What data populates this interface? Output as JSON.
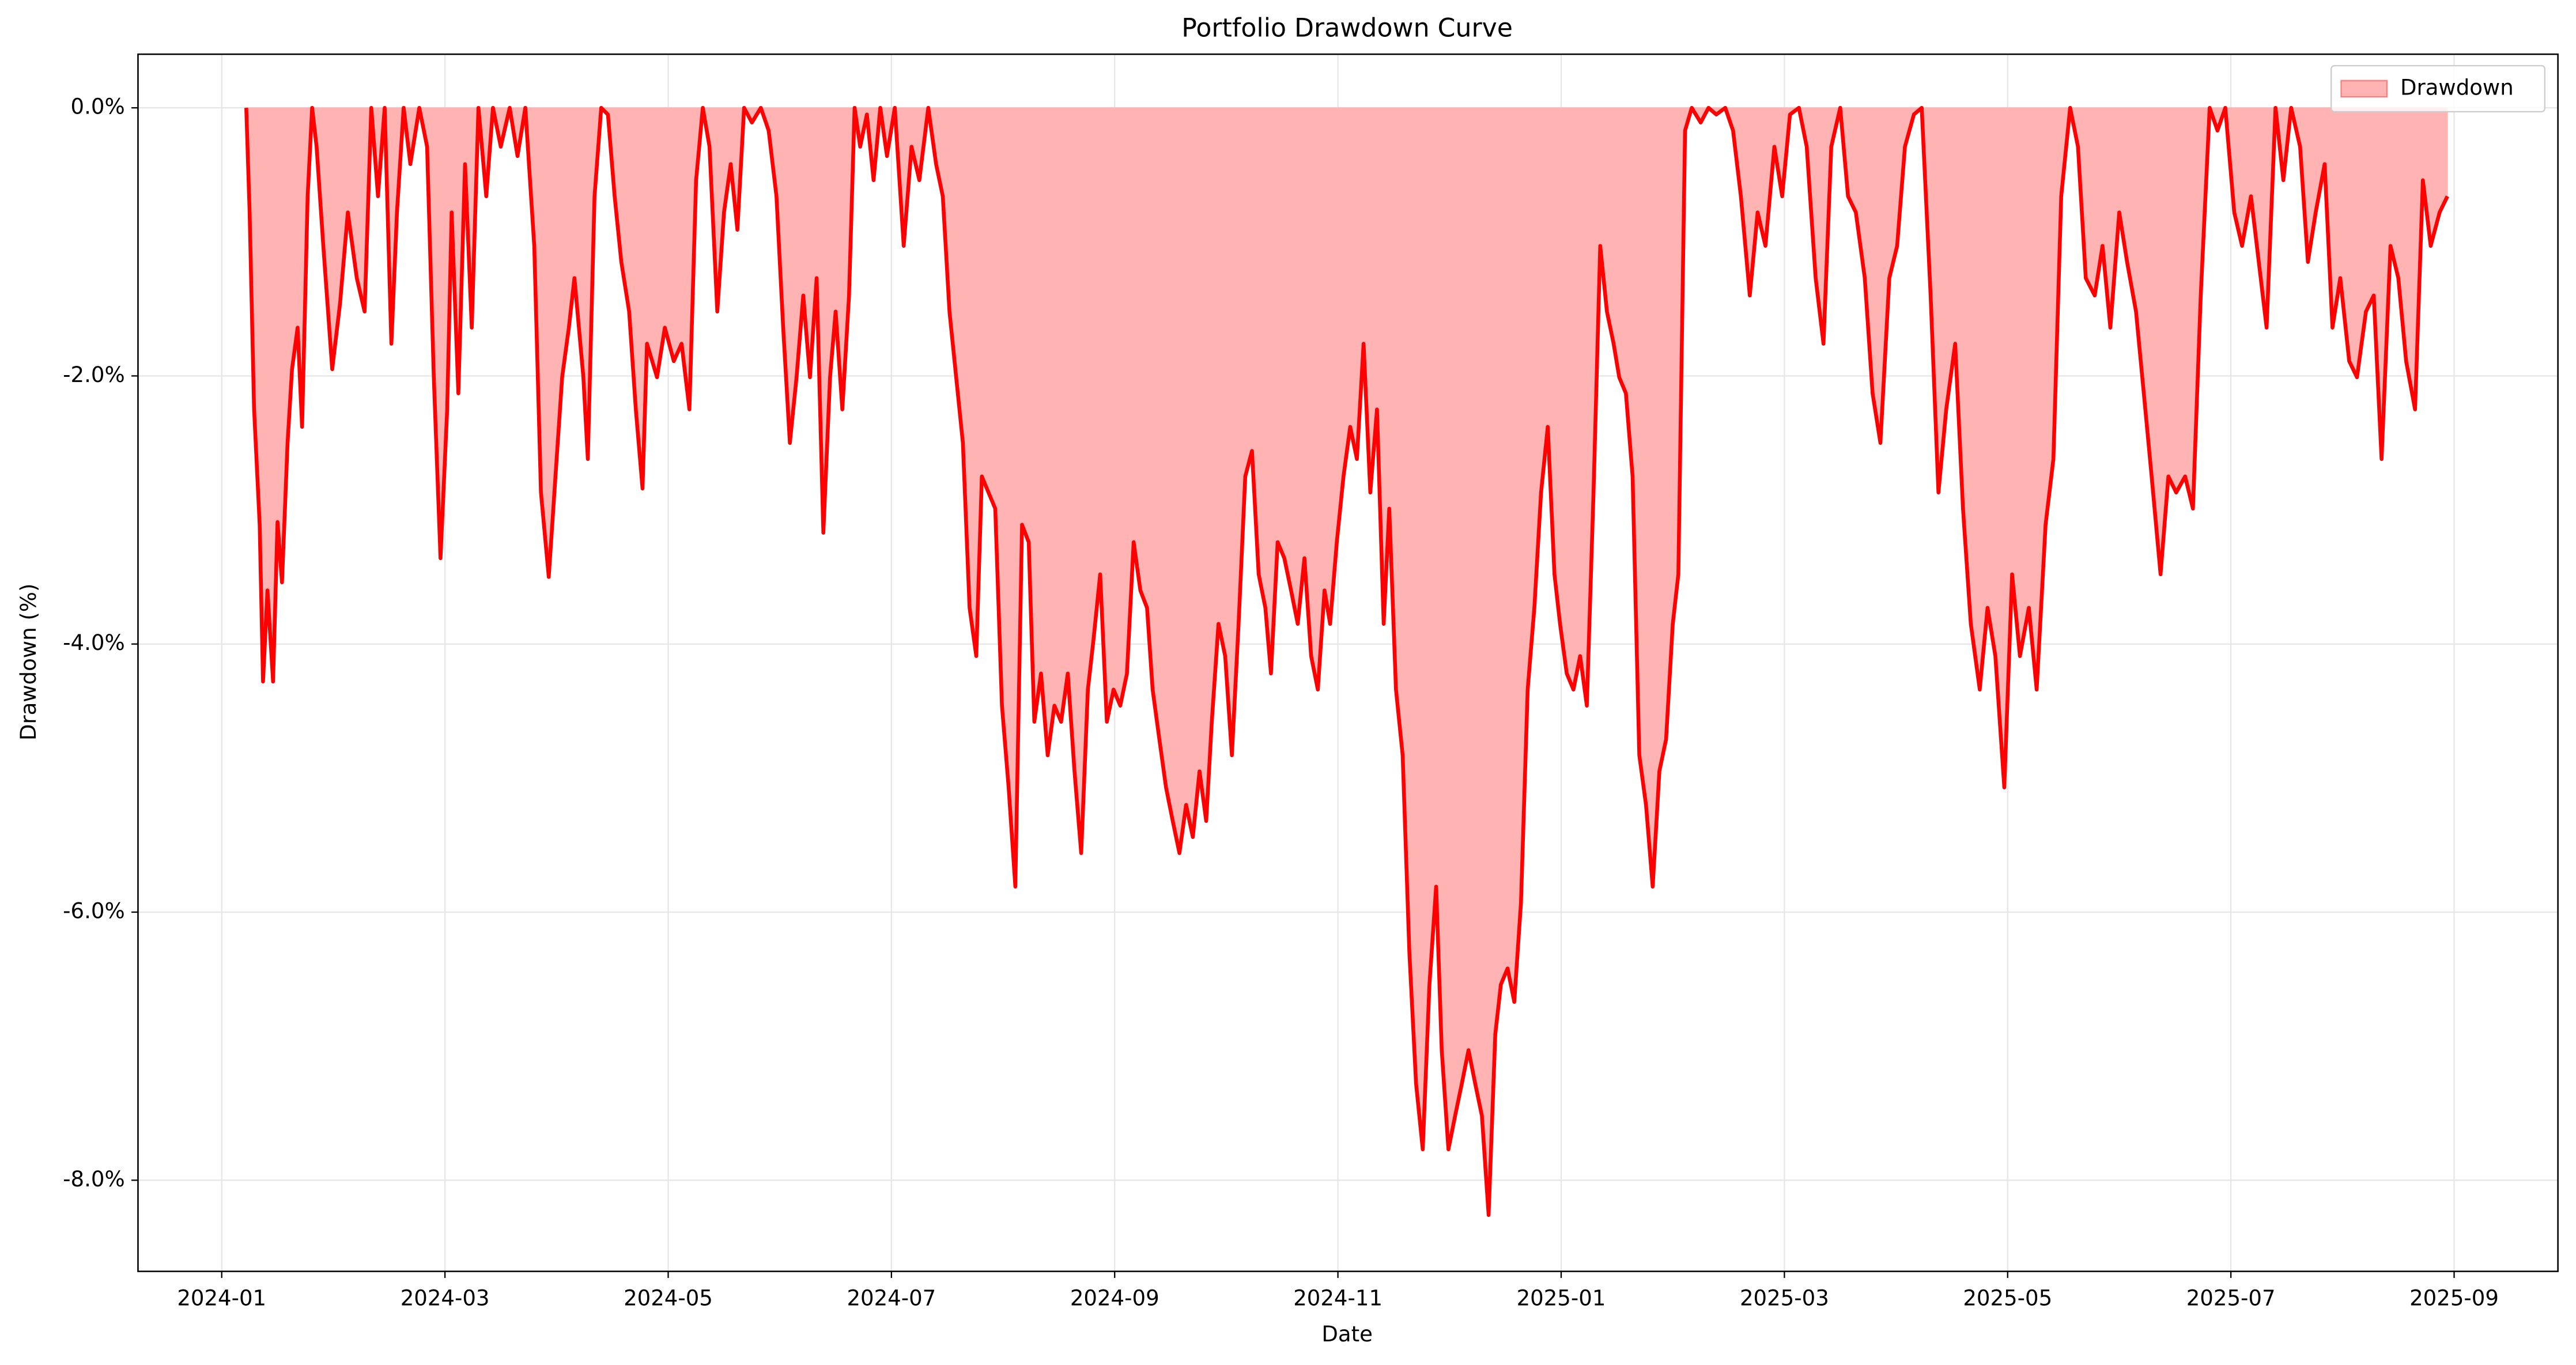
{
  "chart_data": {
    "type": "area",
    "title": "Portfolio Drawdown Curve",
    "x_label": "Date",
    "y_label": "Drawdown (%)",
    "x": [
      0.22,
      0.25,
      0.29,
      0.34,
      0.37,
      0.41,
      0.46,
      0.5,
      0.54,
      0.59,
      0.63,
      0.68,
      0.72,
      0.77,
      0.81,
      0.85,
      0.91,
      0.99,
      1.06,
      1.13,
      1.21,
      1.28,
      1.34,
      1.4,
      1.46,
      1.52,
      1.57,
      1.63,
      1.69,
      1.77,
      1.84,
      1.9,
      1.96,
      2.02,
      2.06,
      2.12,
      2.18,
      2.24,
      2.3,
      2.37,
      2.43,
      2.5,
      2.58,
      2.65,
      2.72,
      2.8,
      2.86,
      2.93,
      2.99,
      3.05,
      3.11,
      3.16,
      3.24,
      3.28,
      3.34,
      3.4,
      3.46,
      3.52,
      3.58,
      3.65,
      3.71,
      3.77,
      3.81,
      3.9,
      3.97,
      4.05,
      4.12,
      4.19,
      4.25,
      4.31,
      4.37,
      4.44,
      4.5,
      4.56,
      4.62,
      4.68,
      4.75,
      4.83,
      4.9,
      4.97,
      5.03,
      5.09,
      5.15,
      5.21,
      5.27,
      5.33,
      5.39,
      5.45,
      5.5,
      5.56,
      5.62,
      5.67,
      5.72,
      5.78,
      5.84,
      5.9,
      5.96,
      6.03,
      6.11,
      6.18,
      6.25,
      6.33,
      6.4,
      6.46,
      6.52,
      6.58,
      6.64,
      6.7,
      6.76,
      6.81,
      6.87,
      6.93,
      6.99,
      7.05,
      7.11,
      7.17,
      7.23,
      7.28,
      7.34,
      7.4,
      7.46,
      7.52,
      7.58,
      7.64,
      7.7,
      7.76,
      7.81,
      7.87,
      7.93,
      7.99,
      8.05,
      8.11,
      8.17,
      8.23,
      8.29,
      8.34,
      8.4,
      8.46,
      8.52,
      8.58,
      8.64,
      8.7,
      8.76,
      8.82,
      8.87,
      8.93,
      8.99,
      9.05,
      9.11,
      9.17,
      9.23,
      9.29,
      9.35,
      9.4,
      9.46,
      9.52,
      9.58,
      9.64,
      9.7,
      9.76,
      9.82,
      9.88,
      9.93,
      9.99,
      10.05,
      10.11,
      10.17,
      10.23,
      10.29,
      10.35,
      10.41,
      10.46,
      10.52,
      10.58,
      10.64,
      10.7,
      10.76,
      10.82,
      10.88,
      10.93,
      10.99,
      11.05,
      11.11,
      11.17,
      11.23,
      11.29,
      11.35,
      11.41,
      11.46,
      11.52,
      11.58,
      11.64,
      11.7,
      11.76,
      11.82,
      11.88,
      11.94,
      11.99,
      12.05,
      12.11,
      12.17,
      12.23,
      12.29,
      12.35,
      12.41,
      12.47,
      12.52,
      12.58,
      12.64,
      12.7,
      12.76,
      12.82,
      12.88,
      12.94,
      13.0,
      13.05,
      13.11,
      13.17,
      13.25,
      13.32,
      13.39,
      13.47,
      13.54,
      13.61,
      13.69,
      13.76,
      13.83,
      13.91,
      13.98,
      14.05,
      14.13,
      14.2,
      14.28,
      14.35,
      14.42,
      14.5,
      14.57,
      14.64,
      14.72,
      14.79,
      14.86,
      14.94,
      15.01,
      15.08,
      15.16,
      15.23,
      15.31,
      15.38,
      15.45,
      15.53,
      15.6,
      15.67,
      15.75,
      15.82,
      15.89,
      15.97,
      16.04,
      16.11,
      16.19,
      16.26,
      16.34,
      16.41,
      16.48,
      16.56,
      16.63,
      16.7,
      16.78,
      16.85,
      16.92,
      17.0,
      17.07,
      17.15,
      17.22,
      17.29,
      17.37,
      17.44,
      17.51,
      17.59,
      17.66,
      17.73,
      17.81,
      17.88,
      17.95,
      18.03,
      18.1,
      18.18,
      18.25,
      18.32,
      18.4,
      18.47,
      18.54,
      18.62,
      18.69,
      18.76,
      18.84,
      18.91,
      18.98,
      19.06,
      19.13,
      19.21,
      19.28,
      19.35,
      19.43,
      19.5,
      19.57,
      19.65,
      19.72,
      19.79,
      19.87,
      19.94
    ],
    "series": [
      {
        "name": "Drawdown",
        "color": "#ff0000",
        "fill": "#ffb3b3",
        "values": [
          0,
          -0.78,
          -2.25,
          -3.11,
          -4.28,
          -3.6,
          -4.28,
          -3.09,
          -3.54,
          -2.5,
          -1.95,
          -1.64,
          -2.38,
          -0.66,
          0,
          -0.29,
          -1.03,
          -1.95,
          -1.46,
          -0.78,
          -1.27,
          -1.52,
          0,
          -0.66,
          0,
          -1.76,
          -0.78,
          0,
          -0.42,
          0,
          -0.29,
          -2.01,
          -3.36,
          -2.25,
          -0.78,
          -2.13,
          -0.42,
          -1.64,
          0,
          -0.66,
          0,
          -0.29,
          0,
          -0.36,
          0,
          -1.03,
          -2.87,
          -3.5,
          -2.75,
          -2.01,
          -1.64,
          -1.27,
          -2.01,
          -2.62,
          -0.66,
          0,
          -0.05,
          -0.66,
          -1.15,
          -1.52,
          -2.25,
          -2.84,
          -1.76,
          -2.01,
          -1.64,
          -1.89,
          -1.76,
          -2.25,
          -0.54,
          0,
          -0.29,
          -1.52,
          -0.78,
          -0.42,
          -0.91,
          0,
          -0.11,
          0,
          -0.17,
          -0.66,
          -1.64,
          -2.5,
          -2.01,
          -1.4,
          -2.01,
          -1.27,
          -3.17,
          -2.01,
          -1.52,
          -2.25,
          -1.4,
          0,
          -0.29,
          -0.05,
          -0.54,
          0,
          -0.36,
          0,
          -1.03,
          -0.29,
          -0.54,
          0,
          -0.42,
          -0.66,
          -1.52,
          -2.01,
          -2.5,
          -3.73,
          -4.09,
          -2.75,
          -2.87,
          -2.99,
          -4.46,
          -5.07,
          -5.81,
          -3.11,
          -3.24,
          -4.58,
          -4.22,
          -4.83,
          -4.46,
          -4.58,
          -4.22,
          -4.95,
          -5.56,
          -4.34,
          -3.97,
          -3.48,
          -4.58,
          -4.34,
          -4.46,
          -4.22,
          -3.24,
          -3.6,
          -3.73,
          -4.34,
          -4.71,
          -5.07,
          -5.32,
          -5.56,
          -5.2,
          -5.44,
          -4.95,
          -5.32,
          -4.58,
          -3.85,
          -4.09,
          -4.83,
          -3.85,
          -2.75,
          -2.56,
          -3.48,
          -3.73,
          -4.22,
          -3.24,
          -3.36,
          -3.6,
          -3.85,
          -3.36,
          -4.09,
          -4.34,
          -3.6,
          -3.85,
          -3.24,
          -2.75,
          -2.38,
          -2.62,
          -1.76,
          -2.87,
          -2.25,
          -3.85,
          -2.99,
          -4.34,
          -4.83,
          -6.3,
          -7.28,
          -7.77,
          -6.54,
          -5.81,
          -7.03,
          -7.77,
          -7.52,
          -7.28,
          -7.03,
          -7.28,
          -7.52,
          -8.26,
          -6.91,
          -6.54,
          -6.42,
          -6.67,
          -5.93,
          -4.34,
          -3.73,
          -2.87,
          -2.38,
          -3.48,
          -3.85,
          -4.22,
          -4.34,
          -4.09,
          -4.46,
          -2.87,
          -1.03,
          -1.52,
          -1.76,
          -2.01,
          -2.13,
          -2.75,
          -4.83,
          -5.2,
          -5.81,
          -4.95,
          -4.71,
          -3.85,
          -3.48,
          -0.17,
          0,
          -0.11,
          0,
          -0.05,
          0,
          -0.17,
          -0.66,
          -1.4,
          -0.78,
          -1.03,
          -0.29,
          -0.66,
          -0.05,
          0,
          -0.29,
          -1.27,
          -1.76,
          -0.29,
          0,
          -0.66,
          -0.78,
          -1.27,
          -2.13,
          -2.5,
          -1.27,
          -1.03,
          -0.29,
          -0.05,
          0,
          -1.4,
          -2.87,
          -2.25,
          -1.76,
          -2.99,
          -3.85,
          -4.34,
          -3.73,
          -4.09,
          -5.07,
          -3.48,
          -4.09,
          -3.73,
          -4.34,
          -3.11,
          -2.62,
          -0.66,
          0,
          -0.29,
          -1.27,
          -1.4,
          -1.03,
          -1.64,
          -0.78,
          -1.15,
          -1.52,
          -2.13,
          -2.75,
          -3.48,
          -2.75,
          -2.87,
          -2.75,
          -2.99,
          -1.4,
          0,
          -0.17,
          0,
          -0.78,
          -1.03,
          -0.66,
          -1.15,
          -1.64,
          0,
          -0.54,
          0,
          -0.29,
          -1.15,
          -0.78,
          -0.42,
          -1.64,
          -1.27,
          -1.89,
          -2.01,
          -1.52,
          -1.4,
          -2.62,
          -1.03,
          -1.27,
          -1.89,
          -2.25,
          -0.54,
          -1.03,
          -0.78,
          -0.66
        ]
      }
    ],
    "xlim": [
      -0.75,
      20.93
    ],
    "ylim": [
      -8.68,
      0.4
    ],
    "xticks": [
      {
        "value": 0,
        "label": "2024-01"
      },
      {
        "value": 2,
        "label": "2024-03"
      },
      {
        "value": 4,
        "label": "2024-05"
      },
      {
        "value": 6,
        "label": "2024-07"
      },
      {
        "value": 8,
        "label": "2024-09"
      },
      {
        "value": 10,
        "label": "2024-11"
      },
      {
        "value": 12,
        "label": "2025-01"
      },
      {
        "value": 14,
        "label": "2025-03"
      },
      {
        "value": 16,
        "label": "2025-05"
      },
      {
        "value": 18,
        "label": "2025-07"
      },
      {
        "value": 20,
        "label": "2025-09"
      }
    ],
    "yticks": [
      {
        "value": 0,
        "label": "0.0%"
      },
      {
        "value": -2,
        "label": "-2.0%"
      },
      {
        "value": -4,
        "label": "-4.0%"
      },
      {
        "value": -6,
        "label": "-6.0%"
      },
      {
        "value": -8,
        "label": "-8.0%"
      }
    ],
    "grid": true,
    "legend": "upper right"
  }
}
